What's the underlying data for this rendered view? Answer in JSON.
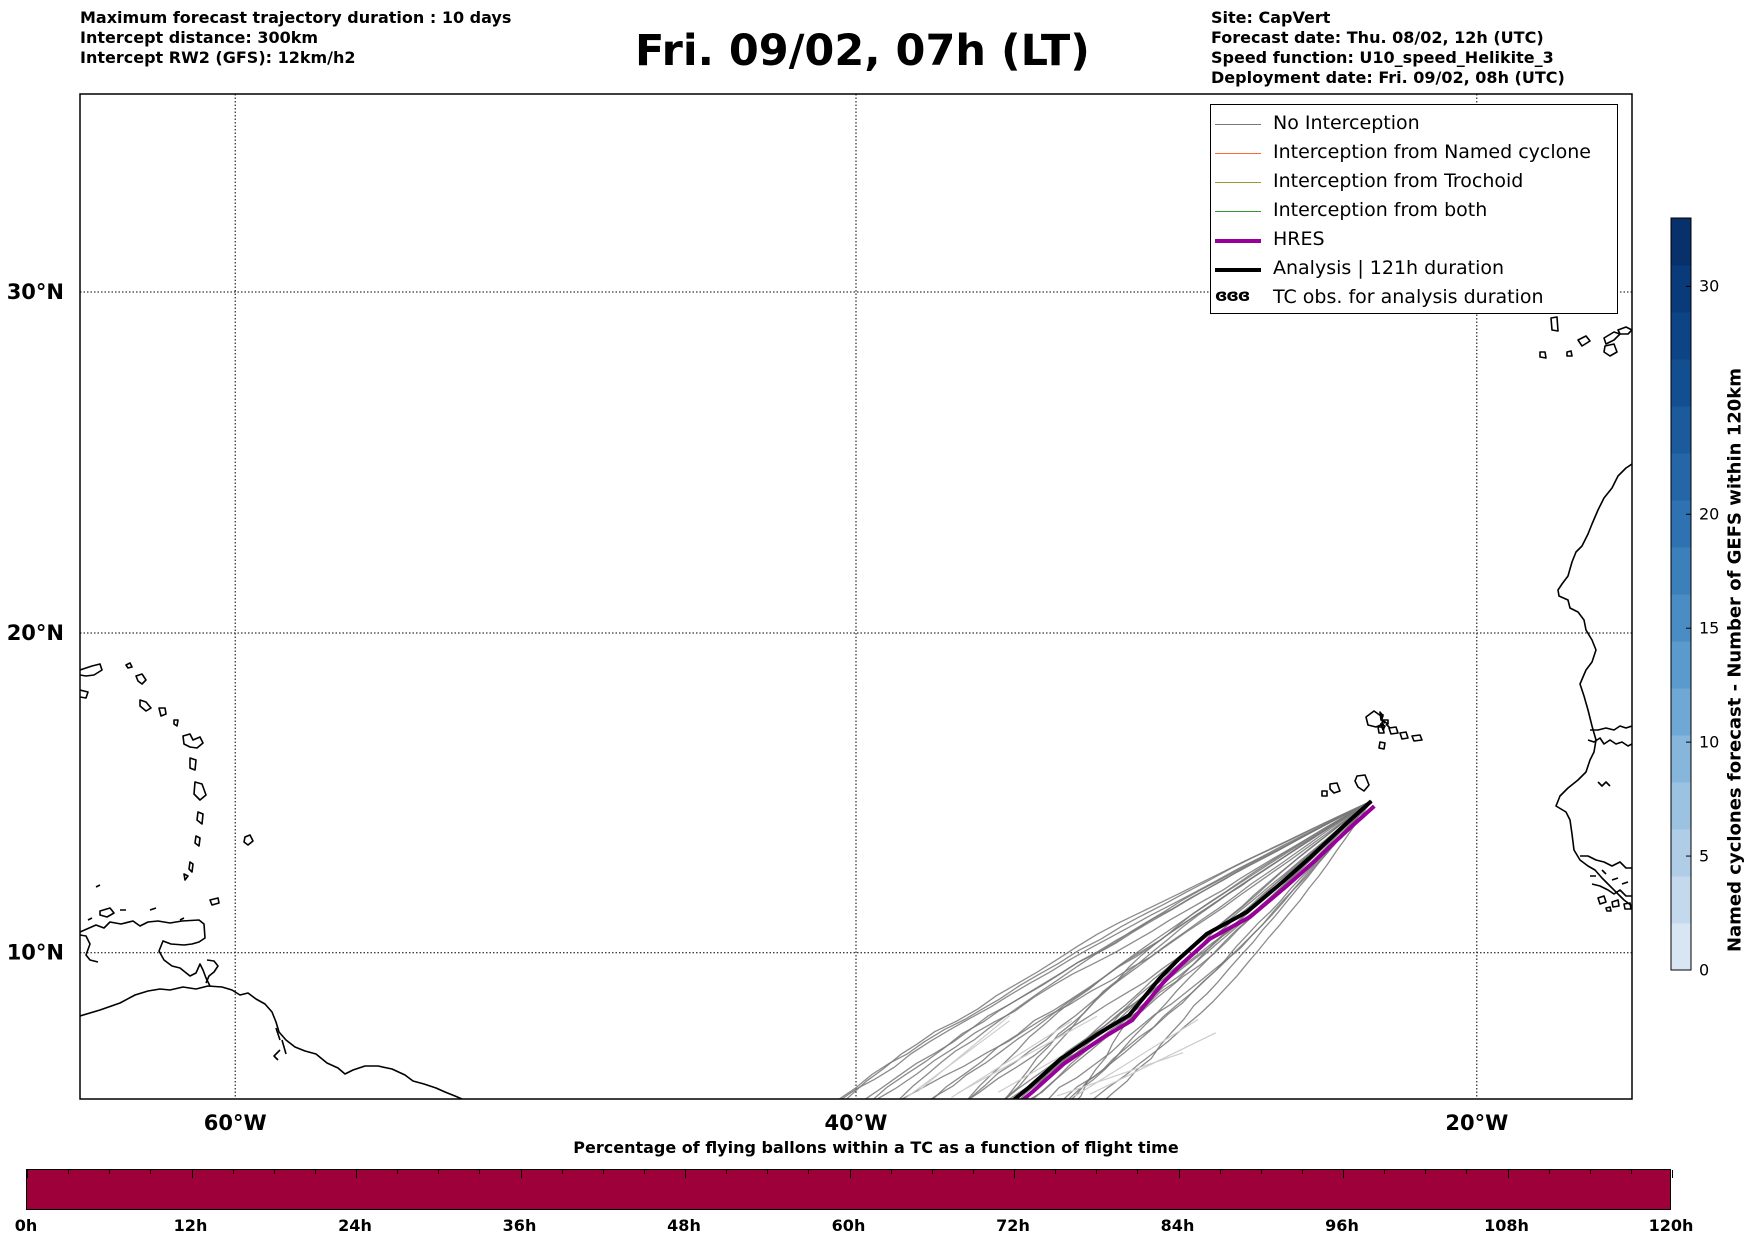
{
  "header": {
    "left_lines": [
      "Maximum forecast trajectory duration : 10 days",
      "Intercept distance: 300km",
      "Intercept RW2 (GFS):  12km/h2"
    ],
    "title": "Fri. 09/02, 07h (LT)",
    "right_lines": [
      "Site: CapVert",
      "Forecast date: Thu. 08/02, 12h (UTC)",
      "Speed function: U10_speed_Helikite_3",
      "Deployment date: Fri. 09/02, 08h (UTC)"
    ]
  },
  "map": {
    "lon_range": [
      -65,
      -15
    ],
    "lat_range": [
      5.3,
      35.4
    ],
    "latitude_labels": [
      {
        "value": 30,
        "text": "30°N"
      },
      {
        "value": 20,
        "text": "20°N"
      },
      {
        "value": 10,
        "text": "10°N"
      }
    ],
    "longitude_labels": [
      {
        "value": -60,
        "text": "60°W"
      },
      {
        "value": -40,
        "text": "40°W"
      },
      {
        "value": -20,
        "text": "20°W"
      }
    ],
    "launch_site": {
      "lon": -23.4,
      "lat": 14.8
    },
    "colors": {
      "no_interception": "#777777",
      "named_cyclone": "#ff6633",
      "trochoid": "#999933",
      "both": "#339933",
      "hres": "#990099",
      "analysis": "#000000",
      "coast": "#000000"
    }
  },
  "legend": {
    "items": [
      {
        "label": "No Interception",
        "color": "#777777",
        "width": 1.5,
        "kind": "line"
      },
      {
        "label": "Interception from Named cyclone",
        "color": "#ff6633",
        "width": 1.5,
        "kind": "line"
      },
      {
        "label": "Interception from Trochoid",
        "color": "#999933",
        "width": 1.5,
        "kind": "line"
      },
      {
        "label": "Interception from both",
        "color": "#339933",
        "width": 1.5,
        "kind": "line"
      },
      {
        "label": "HRES",
        "color": "#990099",
        "width": 4,
        "kind": "line"
      },
      {
        "label": "Analysis | 121h duration",
        "color": "#000000",
        "width": 4,
        "kind": "line"
      },
      {
        "label": "TC obs. for analysis duration",
        "glyph": "ɞɞɞ",
        "kind": "glyph"
      }
    ]
  },
  "colorbar": {
    "label": "Named cyclones forecast - Number of GEFS within 120km",
    "range": [
      0,
      33
    ],
    "ticks": [
      {
        "value": 0,
        "text": "0"
      },
      {
        "value": 5,
        "text": "5"
      },
      {
        "value": 10,
        "text": "10"
      },
      {
        "value": 15,
        "text": "15"
      },
      {
        "value": 20,
        "text": "20"
      },
      {
        "value": 30,
        "text": "30"
      }
    ],
    "colors": [
      "#d8e6f4",
      "#c4d9ee",
      "#b0cde8",
      "#9cc2e2",
      "#86b6dc",
      "#6fa8d4",
      "#5a9acd",
      "#4a8cc4",
      "#3b7fbb",
      "#2e72b1",
      "#2466a6",
      "#1b5a9b",
      "#134e90",
      "#0d4485",
      "#093a79",
      "#08306b"
    ]
  },
  "timebar": {
    "caption": "Percentage of flying ballons within a TC as a function of flight time",
    "fill_color": "#9e003a",
    "percent_within_tc": 0,
    "labels": [
      "0h",
      "12h",
      "24h",
      "36h",
      "48h",
      "60h",
      "72h",
      "84h",
      "96h",
      "108h",
      "120h"
    ]
  }
}
